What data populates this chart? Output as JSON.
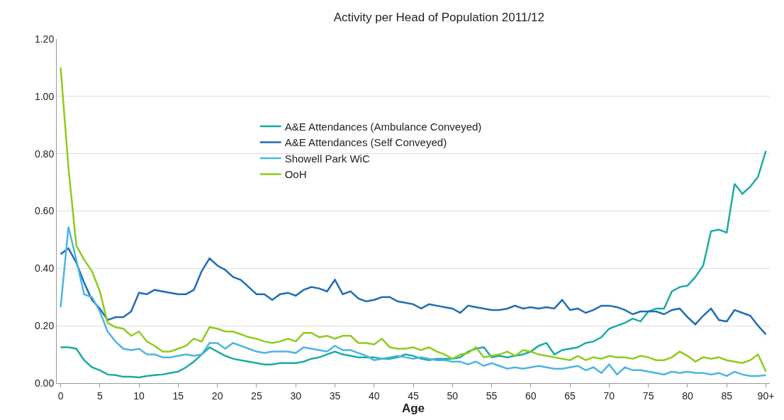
{
  "chart_data": {
    "type": "line",
    "title": "Activity per Head of Population 2011/12",
    "xlabel": "Age",
    "categories": [
      "0",
      null,
      null,
      null,
      null,
      "5",
      null,
      null,
      null,
      null,
      "10",
      null,
      null,
      null,
      null,
      "15",
      null,
      null,
      null,
      null,
      "20",
      null,
      null,
      null,
      null,
      "25",
      null,
      null,
      null,
      null,
      "30",
      null,
      null,
      null,
      null,
      "35",
      null,
      null,
      null,
      null,
      "40",
      null,
      null,
      null,
      null,
      "45",
      null,
      null,
      null,
      null,
      "50",
      null,
      null,
      null,
      null,
      "55",
      null,
      null,
      null,
      null,
      "60",
      null,
      null,
      null,
      null,
      "65",
      null,
      null,
      null,
      null,
      "70",
      null,
      null,
      null,
      null,
      "75",
      null,
      null,
      null,
      null,
      "80",
      null,
      null,
      null,
      null,
      "85",
      null,
      null,
      null,
      null,
      "90+"
    ],
    "ylim": [
      0,
      1.2
    ],
    "yticks": [
      {
        "value": 0,
        "label": "0.00"
      },
      {
        "value": 0.2,
        "label": "0.20"
      },
      {
        "value": 0.4,
        "label": "0.40"
      },
      {
        "value": 0.6,
        "label": "0.60"
      },
      {
        "value": 0.8,
        "label": "0.80"
      },
      {
        "value": 1.0,
        "label": "1.00"
      },
      {
        "value": 1.2,
        "label": "1.20"
      }
    ],
    "grid": "y",
    "legend": "top",
    "marker": "none",
    "line_style": "solid",
    "series": [
      {
        "name": "A&E Attendances (Ambulance Conveyed)",
        "color": "#1aaba3",
        "values": [
          0.125,
          0.125,
          0.12,
          0.08,
          0.055,
          0.045,
          0.03,
          0.028,
          0.022,
          0.022,
          0.02,
          0.025,
          0.028,
          0.03,
          0.035,
          0.04,
          0.055,
          0.075,
          0.1,
          0.125,
          0.11,
          0.095,
          0.085,
          0.08,
          0.075,
          0.07,
          0.065,
          0.065,
          0.07,
          0.07,
          0.07,
          0.075,
          0.085,
          0.09,
          0.1,
          0.11,
          0.1,
          0.095,
          0.09,
          0.09,
          0.09,
          0.085,
          0.085,
          0.09,
          0.1,
          0.095,
          0.085,
          0.08,
          0.085,
          0.085,
          0.085,
          0.09,
          0.11,
          0.12,
          0.125,
          0.09,
          0.095,
          0.09,
          0.095,
          0.1,
          0.11,
          0.13,
          0.14,
          0.1,
          0.115,
          0.12,
          0.125,
          0.14,
          0.145,
          0.16,
          0.19,
          0.2,
          0.21,
          0.225,
          0.215,
          0.25,
          0.26,
          0.26,
          0.32,
          0.335,
          0.34,
          0.37,
          0.41,
          0.53,
          0.535,
          0.525,
          0.695,
          0.66,
          0.685,
          0.72,
          0.81
        ]
      },
      {
        "name": "A&E Attendances (Self Conveyed)",
        "color": "#1e6db3",
        "values": [
          0.45,
          0.47,
          0.42,
          0.35,
          0.29,
          0.26,
          0.22,
          0.23,
          0.23,
          0.25,
          0.315,
          0.31,
          0.325,
          0.32,
          0.315,
          0.31,
          0.31,
          0.325,
          0.39,
          0.435,
          0.41,
          0.395,
          0.37,
          0.36,
          0.335,
          0.31,
          0.31,
          0.29,
          0.31,
          0.315,
          0.305,
          0.325,
          0.335,
          0.33,
          0.32,
          0.36,
          0.31,
          0.32,
          0.295,
          0.285,
          0.29,
          0.3,
          0.3,
          0.285,
          0.28,
          0.275,
          0.26,
          0.275,
          0.27,
          0.265,
          0.26,
          0.245,
          0.27,
          0.265,
          0.26,
          0.255,
          0.255,
          0.26,
          0.27,
          0.26,
          0.265,
          0.26,
          0.265,
          0.26,
          0.29,
          0.255,
          0.26,
          0.245,
          0.255,
          0.27,
          0.27,
          0.265,
          0.255,
          0.24,
          0.25,
          0.25,
          0.25,
          0.24,
          0.255,
          0.26,
          0.23,
          0.205,
          0.235,
          0.26,
          0.22,
          0.215,
          0.255,
          0.245,
          0.235,
          0.2,
          0.17
        ]
      },
      {
        "name": "Showell Park WiC",
        "color": "#4bb6e2",
        "values": [
          0.265,
          0.545,
          0.43,
          0.31,
          0.3,
          0.25,
          0.18,
          0.145,
          0.12,
          0.115,
          0.12,
          0.1,
          0.1,
          0.09,
          0.09,
          0.095,
          0.1,
          0.095,
          0.1,
          0.14,
          0.14,
          0.12,
          0.14,
          0.13,
          0.12,
          0.11,
          0.105,
          0.11,
          0.11,
          0.11,
          0.105,
          0.125,
          0.12,
          0.115,
          0.11,
          0.13,
          0.115,
          0.115,
          0.105,
          0.095,
          0.08,
          0.085,
          0.09,
          0.095,
          0.09,
          0.085,
          0.09,
          0.085,
          0.08,
          0.08,
          0.075,
          0.075,
          0.065,
          0.075,
          0.06,
          0.07,
          0.06,
          0.05,
          0.055,
          0.05,
          0.055,
          0.06,
          0.055,
          0.05,
          0.05,
          0.055,
          0.06,
          0.045,
          0.055,
          0.035,
          0.065,
          0.03,
          0.055,
          0.045,
          0.045,
          0.04,
          0.035,
          0.03,
          0.04,
          0.035,
          0.04,
          0.035,
          0.035,
          0.03,
          0.035,
          0.025,
          0.04,
          0.03,
          0.025,
          0.025,
          0.028
        ]
      },
      {
        "name": "OoH",
        "color": "#8dcc1c",
        "values": [
          1.1,
          0.75,
          0.48,
          0.43,
          0.39,
          0.32,
          0.21,
          0.195,
          0.19,
          0.165,
          0.18,
          0.145,
          0.13,
          0.11,
          0.11,
          0.12,
          0.13,
          0.155,
          0.145,
          0.195,
          0.19,
          0.18,
          0.18,
          0.17,
          0.16,
          0.155,
          0.145,
          0.14,
          0.145,
          0.155,
          0.145,
          0.175,
          0.175,
          0.16,
          0.165,
          0.155,
          0.165,
          0.165,
          0.14,
          0.14,
          0.135,
          0.155,
          0.125,
          0.12,
          0.12,
          0.125,
          0.115,
          0.125,
          0.11,
          0.1,
          0.085,
          0.1,
          0.105,
          0.125,
          0.09,
          0.095,
          0.1,
          0.11,
          0.095,
          0.115,
          0.11,
          0.1,
          0.095,
          0.09,
          0.085,
          0.08,
          0.095,
          0.08,
          0.09,
          0.085,
          0.095,
          0.09,
          0.09,
          0.085,
          0.095,
          0.09,
          0.08,
          0.08,
          0.09,
          0.11,
          0.095,
          0.075,
          0.09,
          0.085,
          0.09,
          0.08,
          0.075,
          0.07,
          0.08,
          0.1,
          0.04
        ]
      }
    ]
  }
}
